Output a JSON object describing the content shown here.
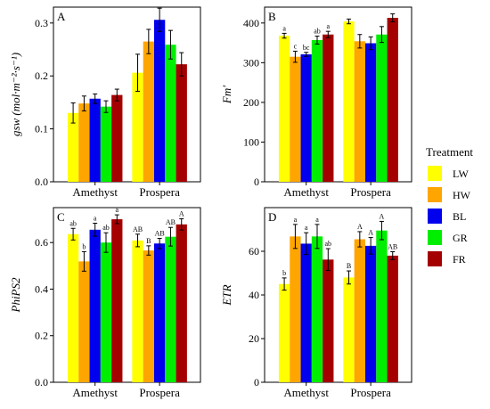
{
  "legend": {
    "title": "Treatment",
    "entries": [
      {
        "name": "LW",
        "color": "#ffff00"
      },
      {
        "name": "HW",
        "color": "#ffa500"
      },
      {
        "name": "BL",
        "color": "#0000ee"
      },
      {
        "name": "GR",
        "color": "#00ee00"
      },
      {
        "name": "FR",
        "color": "#a50000"
      }
    ]
  },
  "chart_data": [
    {
      "type": "bar",
      "panel": "A",
      "ylabel": "gsw (mol·m⁻²·s⁻¹)",
      "ylim": [
        0,
        0.33
      ],
      "yticks": [
        0.0,
        0.1,
        0.2,
        0.3
      ],
      "ytick_labels": [
        "0.0",
        "0.1",
        "0.2",
        "0.3"
      ],
      "categories": [
        "Amethyst",
        "Prospera"
      ],
      "series": [
        {
          "name": "LW",
          "values": [
            0.13,
            0.206
          ],
          "errors": [
            0.019,
            0.035
          ],
          "labels": [
            "",
            ""
          ]
        },
        {
          "name": "HW",
          "values": [
            0.148,
            0.265
          ],
          "errors": [
            0.014,
            0.023
          ],
          "labels": [
            "",
            ""
          ]
        },
        {
          "name": "BL",
          "values": [
            0.157,
            0.306
          ],
          "errors": [
            0.009,
            0.022
          ],
          "labels": [
            "",
            ""
          ]
        },
        {
          "name": "GR",
          "values": [
            0.142,
            0.259
          ],
          "errors": [
            0.011,
            0.027
          ],
          "labels": [
            "",
            ""
          ]
        },
        {
          "name": "FR",
          "values": [
            0.164,
            0.222
          ],
          "errors": [
            0.011,
            0.022
          ],
          "labels": [
            "",
            ""
          ]
        }
      ]
    },
    {
      "type": "bar",
      "panel": "B",
      "ylabel": "Fm′",
      "ylim": [
        0,
        440
      ],
      "yticks": [
        0,
        100,
        200,
        300,
        400
      ],
      "ytick_labels": [
        "0",
        "100",
        "200",
        "300",
        "400"
      ],
      "categories": [
        "Amethyst",
        "Prospera"
      ],
      "series": [
        {
          "name": "LW",
          "values": [
            368,
            404
          ],
          "errors": [
            6,
            6
          ],
          "labels": [
            "a",
            ""
          ]
        },
        {
          "name": "HW",
          "values": [
            315,
            354
          ],
          "errors": [
            14,
            17
          ],
          "labels": [
            "c",
            ""
          ]
        },
        {
          "name": "BL",
          "values": [
            321,
            349
          ],
          "errors": [
            5,
            16
          ],
          "labels": [
            "bc",
            ""
          ]
        },
        {
          "name": "GR",
          "values": [
            357,
            371
          ],
          "errors": [
            10,
            20
          ],
          "labels": [
            "ab",
            ""
          ]
        },
        {
          "name": "FR",
          "values": [
            371,
            413
          ],
          "errors": [
            8,
            10
          ],
          "labels": [
            "a",
            ""
          ]
        }
      ]
    },
    {
      "type": "bar",
      "panel": "C",
      "ylabel": "PhiPS2",
      "ylim": [
        0,
        0.75
      ],
      "yticks": [
        0.0,
        0.2,
        0.4,
        0.6
      ],
      "ytick_labels": [
        "0.0",
        "0.2",
        "0.4",
        "0.6"
      ],
      "categories": [
        "Amethyst",
        "Prospera"
      ],
      "series": [
        {
          "name": "LW",
          "values": [
            0.636,
            0.609
          ],
          "errors": [
            0.025,
            0.027
          ],
          "labels": [
            "ab",
            "AB"
          ]
        },
        {
          "name": "HW",
          "values": [
            0.519,
            0.566
          ],
          "errors": [
            0.042,
            0.02
          ],
          "labels": [
            "b",
            "B"
          ]
        },
        {
          "name": "BL",
          "values": [
            0.655,
            0.596
          ],
          "errors": [
            0.028,
            0.022
          ],
          "labels": [
            "a",
            "AB"
          ]
        },
        {
          "name": "GR",
          "values": [
            0.6,
            0.625
          ],
          "errors": [
            0.042,
            0.04
          ],
          "labels": [
            "ab",
            "AB"
          ]
        },
        {
          "name": "FR",
          "values": [
            0.7,
            0.678
          ],
          "errors": [
            0.019,
            0.024
          ],
          "labels": [
            "a",
            "A"
          ]
        }
      ]
    },
    {
      "type": "bar",
      "panel": "D",
      "ylabel": "ETR",
      "ylim": [
        0,
        80
      ],
      "yticks": [
        0,
        20,
        40,
        60
      ],
      "ytick_labels": [
        "0",
        "20",
        "40",
        "60"
      ],
      "categories": [
        "Amethyst",
        "Prospera"
      ],
      "series": [
        {
          "name": "LW",
          "values": [
            45.0,
            48.0
          ],
          "errors": [
            2.8,
            3.0
          ],
          "labels": [
            "b",
            "B"
          ]
        },
        {
          "name": "HW",
          "values": [
            66.8,
            65.5
          ],
          "errors": [
            5.5,
            3.5
          ],
          "labels": [
            "a",
            "A"
          ]
        },
        {
          "name": "BL",
          "values": [
            63.5,
            62.5
          ],
          "errors": [
            5.0,
            3.8
          ],
          "labels": [
            "a",
            "A"
          ]
        },
        {
          "name": "GR",
          "values": [
            66.8,
            69.5
          ],
          "errors": [
            5.5,
            4.2
          ],
          "labels": [
            "a",
            "A"
          ]
        },
        {
          "name": "FR",
          "values": [
            56.2,
            58.0
          ],
          "errors": [
            5.0,
            1.8
          ],
          "labels": [
            "ab",
            "AB"
          ]
        }
      ]
    }
  ]
}
